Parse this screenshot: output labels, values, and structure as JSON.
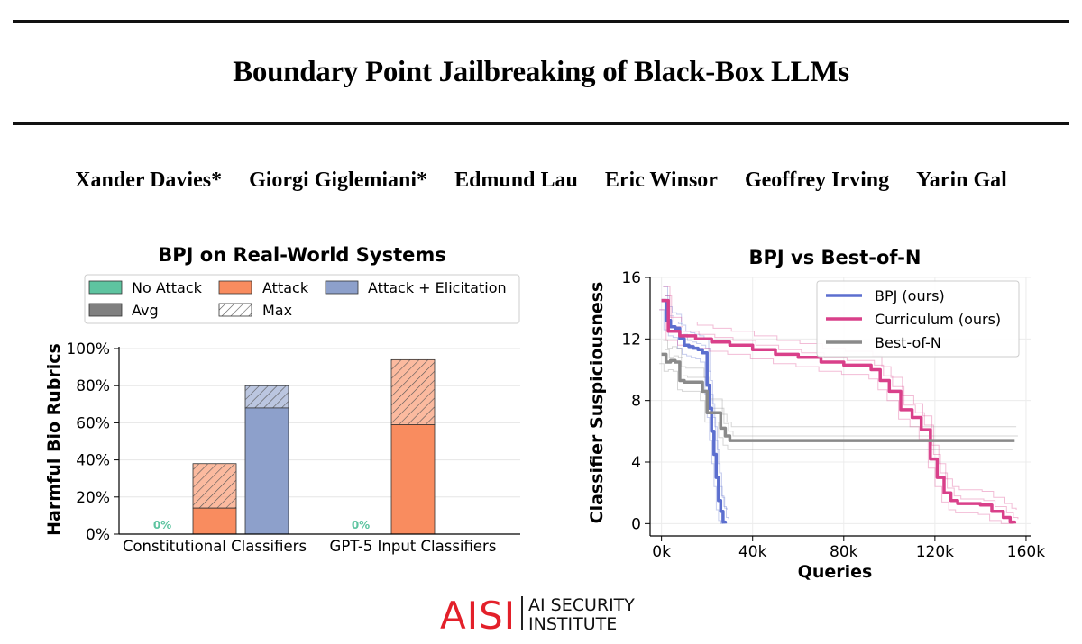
{
  "paper": {
    "title": "Boundary Point Jailbreaking of Black-Box LLMs",
    "authors": [
      "Xander Davies*",
      "Giorgi Giglemiani*",
      "Edmund Lau",
      "Eric Winsor",
      "Geoffrey Irving",
      "Yarin Gal"
    ]
  },
  "colors": {
    "no_attack": "#5ec4a0",
    "attack": "#f98c5f",
    "elicitation": "#8da0cb",
    "avg": "#808080",
    "bpj": "#5c6fcf",
    "curriculum": "#d9408a",
    "bestofn": "#8a8a8a",
    "logo_red": "#e3202a"
  },
  "chart_data": [
    {
      "type": "bar",
      "title": "BPJ on Real-World Systems",
      "ylabel": "Harmful Bio Rubrics",
      "xlabel": "",
      "ylim": [
        0,
        100
      ],
      "yticks": [
        "0%",
        "20%",
        "40%",
        "60%",
        "80%",
        "100%"
      ],
      "categories": [
        "Constitutional Classifiers",
        "GPT-5 Input Classifiers"
      ],
      "legend": [
        {
          "name": "No Attack",
          "style": "no_attack"
        },
        {
          "name": "Attack",
          "style": "attack"
        },
        {
          "name": "Attack + Elicitation",
          "style": "elicitation"
        },
        {
          "name": "Avg",
          "style": "avg"
        },
        {
          "name": "Max",
          "style": "max"
        }
      ],
      "series": [
        {
          "name": "No Attack",
          "avg": [
            0,
            0
          ],
          "max": [
            0,
            0
          ],
          "labels": [
            "0%",
            "0%"
          ]
        },
        {
          "name": "Attack",
          "avg": [
            14,
            59
          ],
          "max": [
            38,
            94
          ]
        },
        {
          "name": "Attack + Elicitation",
          "avg": [
            68,
            null
          ],
          "max": [
            80,
            null
          ]
        }
      ]
    },
    {
      "type": "line",
      "title": "BPJ vs Best-of-N",
      "xlabel": "Queries",
      "ylabel": "Classifier Suspiciousness",
      "xlim": [
        -5000,
        162000
      ],
      "ylim": [
        -0.8,
        16
      ],
      "xticks": [
        0,
        40000,
        80000,
        120000,
        160000
      ],
      "xtick_labels": [
        "0k",
        "40k",
        "80k",
        "120k",
        "160k"
      ],
      "yticks": [
        0,
        4,
        8,
        12,
        16
      ],
      "ytick_labels": [
        "0",
        "4",
        "8",
        "12",
        "16"
      ],
      "legend_position": "top-right",
      "series": [
        {
          "name": "BPJ (ours)",
          "color_key": "bpj",
          "x": [
            0,
            2000,
            4000,
            6000,
            8000,
            10000,
            12000,
            14000,
            16000,
            18000,
            20000,
            21000,
            22000,
            23000,
            24000,
            25000,
            26000,
            27000,
            28000
          ],
          "y": [
            14.5,
            13.2,
            12.8,
            12.7,
            12.0,
            11.6,
            11.5,
            11.4,
            11.3,
            11.1,
            9.0,
            7.5,
            6.0,
            4.5,
            3.0,
            1.5,
            0.8,
            0.1,
            0.0
          ]
        },
        {
          "name": "Curriculum (ours)",
          "color_key": "curriculum",
          "x": [
            0,
            3000,
            8000,
            15000,
            22000,
            30000,
            40000,
            50000,
            60000,
            70000,
            80000,
            88000,
            92000,
            96000,
            100000,
            105000,
            110000,
            114000,
            118000,
            121000,
            124000,
            127000,
            130000,
            135000,
            140000,
            145000,
            150000,
            153000,
            155000
          ],
          "y": [
            14.5,
            12.5,
            12.2,
            12.0,
            11.8,
            11.6,
            11.3,
            11.0,
            10.8,
            10.5,
            10.3,
            10.3,
            10.0,
            9.3,
            8.6,
            7.4,
            6.9,
            6.1,
            4.2,
            3.0,
            2.0,
            1.5,
            1.3,
            1.3,
            1.2,
            0.8,
            0.4,
            0.1,
            0.0
          ]
        },
        {
          "name": "Best-of-N",
          "color_key": "bestofn",
          "x": [
            0,
            2000,
            4000,
            6000,
            8000,
            10000,
            14000,
            18000,
            20000,
            24000,
            26000,
            28000,
            30000,
            40000,
            80000,
            120000,
            155000
          ],
          "y": [
            11.0,
            10.5,
            10.6,
            10.5,
            9.3,
            9.2,
            9.2,
            8.6,
            7.2,
            7.2,
            6.2,
            5.7,
            5.4,
            5.4,
            5.4,
            5.4,
            5.4
          ]
        }
      ]
    }
  ],
  "logo": {
    "mark": "AISI",
    "line1": "AI SECURITY",
    "line2": "INSTITUTE"
  }
}
